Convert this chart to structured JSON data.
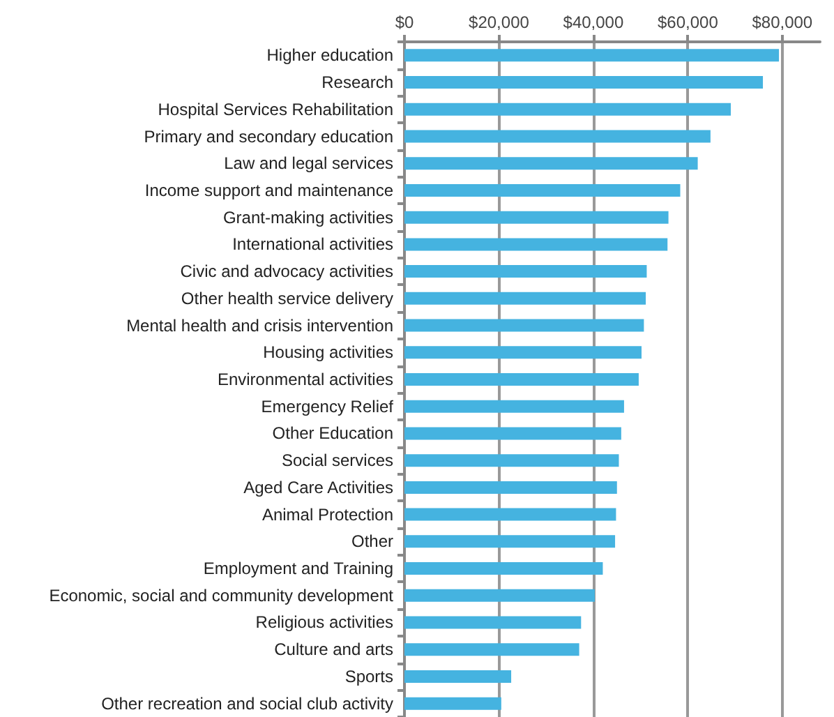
{
  "chart_data": {
    "type": "bar",
    "orientation": "horizontal",
    "categories": [
      "Higher education",
      "Research",
      "Hospital Services Rehabilitation",
      "Primary and secondary education",
      "Law and legal services",
      "Income support and maintenance",
      "Grant-making activities",
      "International activities",
      "Civic and advocacy activities",
      "Other health service delivery",
      "Mental health and crisis intervention",
      "Housing activities",
      "Environmental activities",
      "Emergency Relief",
      "Other Education",
      "Social services",
      "Aged Care Activities",
      "Animal Protection",
      "Other",
      "Employment and Training",
      "Economic, social and community development",
      "Religious activities",
      "Culture and arts",
      "Sports",
      "Other recreation and social club activity"
    ],
    "values": [
      79300,
      75900,
      69100,
      64800,
      62100,
      58400,
      55900,
      55700,
      51300,
      51100,
      50700,
      50200,
      49600,
      46500,
      45900,
      45400,
      45000,
      44800,
      44600,
      42000,
      40300,
      37400,
      37000,
      22600,
      20500
    ],
    "color": "#45b3e0",
    "xlim": [
      0,
      88000
    ],
    "xticks": [
      {
        "value": 0,
        "label": "$0"
      },
      {
        "value": 20000,
        "label": "$20,000"
      },
      {
        "value": 40000,
        "label": "$40,000"
      },
      {
        "value": 60000,
        "label": "$60,000"
      },
      {
        "value": 80000,
        "label": "$80,000"
      }
    ],
    "grid": "x"
  }
}
